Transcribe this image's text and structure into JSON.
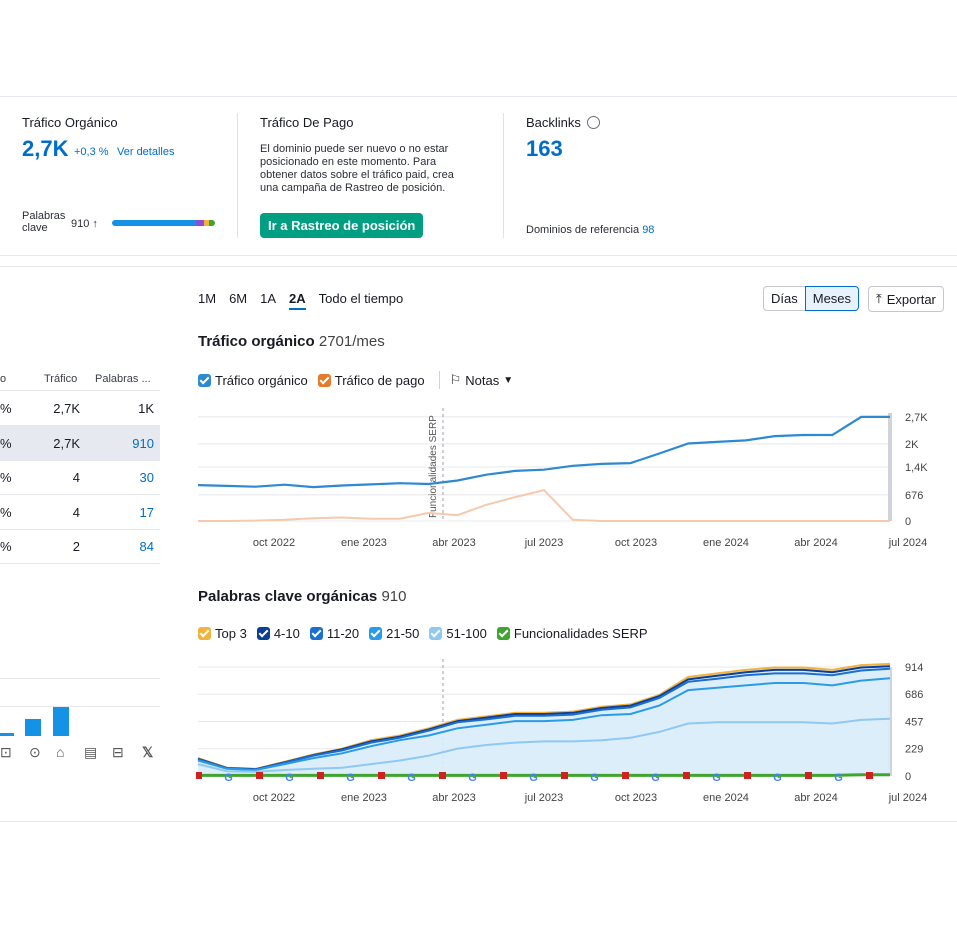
{
  "summary": {
    "organic": {
      "label": "Tráfico Orgánico",
      "value": "2,7K",
      "change": "+0,3 %",
      "details_link": "Ver detalles",
      "keywords_label_1": "Palabras",
      "keywords_label_2": "clave",
      "keywords_value": "910",
      "keywords_arrow": "↑"
    },
    "paid": {
      "label": "Tráfico De Pago",
      "message_lines": [
        "El dominio puede ser nuevo o no estar",
        "posicionado en este momento. Para",
        "obtener datos sobre el tráfico paid, crea",
        "una campaña de Rastreo de posición."
      ],
      "button": "Ir a Rastreo de posición"
    },
    "backlinks": {
      "label": "Backlinks",
      "value": "163",
      "ref_domains_label": "Dominios de referencia",
      "ref_domains_value": "98"
    }
  },
  "table": {
    "headers": [
      "o",
      "Tráfico",
      "Palabras ..."
    ],
    "rows": [
      {
        "pct": "%",
        "traffic": "2,7K",
        "keywords": "1K"
      },
      {
        "pct": "%",
        "traffic": "2,7K",
        "keywords": "910"
      },
      {
        "pct": "%",
        "traffic": "4",
        "keywords": "30"
      },
      {
        "pct": "%",
        "traffic": "4",
        "keywords": "17"
      },
      {
        "pct": "%",
        "traffic": "2",
        "keywords": "84"
      }
    ]
  },
  "controls": {
    "ranges": [
      "1M",
      "6M",
      "1A",
      "2A",
      "Todo el tiempo"
    ],
    "active_range": "2A",
    "granularity": [
      "Días",
      "Meses"
    ],
    "active_granularity": "Meses",
    "export": "Exportar"
  },
  "traffic_chart": {
    "title": "Tráfico orgánico",
    "value": "2701/mes",
    "legend": [
      {
        "label": "Tráfico orgánico",
        "color": "#2e89d1"
      },
      {
        "label": "Tráfico de pago",
        "color": "#e47a2c"
      }
    ],
    "notes_label": "Notas",
    "annotation": "Funcionalidades SERP",
    "x_labels": [
      "oct 2022",
      "ene 2023",
      "abr 2023",
      "jul 2023",
      "oct 2023",
      "ene 2024",
      "abr 2024",
      "jul 2024"
    ],
    "y_labels": [
      "2,7K",
      "2K",
      "1,4K",
      "676",
      "0"
    ]
  },
  "keywords_chart": {
    "title": "Palabras clave orgánicas",
    "value": "910",
    "legend": [
      {
        "label": "Top 3",
        "color": "#f2b33c"
      },
      {
        "label": "4-10",
        "color": "#0d3f96"
      },
      {
        "label": "11-20",
        "color": "#1b6fcf"
      },
      {
        "label": "21-50",
        "color": "#2a9be8"
      },
      {
        "label": "51-100",
        "color": "#8fc8f3"
      },
      {
        "label": "Funcionalidades SERP",
        "color": "#3fa52f"
      }
    ],
    "x_labels": [
      "oct 2022",
      "ene 2023",
      "abr 2023",
      "jul 2023",
      "oct 2023",
      "ene 2024",
      "abr 2024",
      "jul 2024"
    ],
    "y_labels": [
      "914",
      "686",
      "457",
      "229",
      "0"
    ]
  },
  "chart_data": [
    {
      "type": "line",
      "title": "Tráfico orgánico",
      "x": [
        "jul 2022",
        "ago 2022",
        "sep 2022",
        "oct 2022",
        "nov 2022",
        "dic 2022",
        "ene 2023",
        "feb 2023",
        "mar 2023",
        "abr 2023",
        "may 2023",
        "jun 2023",
        "jul 2023",
        "ago 2023",
        "sep 2023",
        "oct 2023",
        "nov 2023",
        "dic 2023",
        "ene 2024",
        "feb 2024",
        "mar 2024",
        "abr 2024",
        "may 2024",
        "jun 2024",
        "jul 2024"
      ],
      "series": [
        {
          "name": "Tráfico orgánico",
          "values": [
            930,
            910,
            890,
            940,
            880,
            920,
            950,
            980,
            960,
            1050,
            1200,
            1300,
            1330,
            1430,
            1480,
            1500,
            1750,
            2010,
            2050,
            2090,
            2200,
            2230,
            2230,
            2700,
            2700
          ]
        },
        {
          "name": "Tráfico de pago",
          "values": [
            0,
            0,
            10,
            30,
            70,
            90,
            60,
            60,
            210,
            150,
            420,
            620,
            800,
            30,
            0,
            0,
            0,
            0,
            0,
            0,
            0,
            0,
            0,
            0,
            0
          ]
        }
      ],
      "ylim": [
        0,
        2800
      ],
      "y_ticks": [
        "0",
        "676",
        "1,4K",
        "2K",
        "2,7K"
      ]
    },
    {
      "type": "area",
      "title": "Palabras clave orgánicas",
      "x": [
        "jul 2022",
        "ago 2022",
        "sep 2022",
        "oct 2022",
        "nov 2022",
        "dic 2022",
        "ene 2023",
        "feb 2023",
        "mar 2023",
        "abr 2023",
        "may 2023",
        "jun 2023",
        "jul 2023",
        "ago 2023",
        "sep 2023",
        "oct 2023",
        "nov 2023",
        "dic 2023",
        "ene 2024",
        "feb 2024",
        "mar 2024",
        "abr 2024",
        "may 2024",
        "jun 2024",
        "jul 2024"
      ],
      "series": [
        {
          "name": "Top 3",
          "values": [
            150,
            70,
            60,
            120,
            180,
            230,
            300,
            340,
            400,
            470,
            500,
            530,
            530,
            540,
            580,
            600,
            680,
            830,
            860,
            890,
            910,
            910,
            890,
            930,
            940
          ]
        },
        {
          "name": "4-10",
          "values": [
            145,
            67,
            57,
            115,
            175,
            225,
            290,
            330,
            390,
            460,
            490,
            520,
            520,
            530,
            570,
            590,
            670,
            810,
            840,
            870,
            890,
            890,
            870,
            910,
            920
          ]
        },
        {
          "name": "11-20",
          "values": [
            140,
            64,
            54,
            110,
            170,
            215,
            280,
            320,
            380,
            450,
            475,
            505,
            505,
            515,
            555,
            575,
            655,
            790,
            815,
            845,
            860,
            860,
            845,
            885,
            900
          ]
        },
        {
          "name": "21-50",
          "values": [
            130,
            60,
            50,
            100,
            150,
            190,
            250,
            300,
            340,
            400,
            430,
            460,
            460,
            470,
            510,
            520,
            590,
            720,
            740,
            760,
            780,
            780,
            760,
            800,
            820
          ]
        },
        {
          "name": "51-100",
          "values": [
            100,
            40,
            35,
            50,
            60,
            70,
            100,
            130,
            170,
            230,
            260,
            280,
            290,
            290,
            300,
            320,
            370,
            440,
            450,
            450,
            450,
            450,
            440,
            470,
            480
          ]
        },
        {
          "name": "Funcionalidades SERP",
          "values": [
            5,
            5,
            5,
            5,
            5,
            5,
            5,
            5,
            5,
            5,
            5,
            5,
            5,
            5,
            5,
            5,
            5,
            5,
            5,
            5,
            5,
            5,
            5,
            10,
            10
          ]
        }
      ],
      "ylim": [
        0,
        914
      ],
      "y_ticks": [
        "0",
        "229",
        "457",
        "686",
        "914"
      ]
    }
  ]
}
